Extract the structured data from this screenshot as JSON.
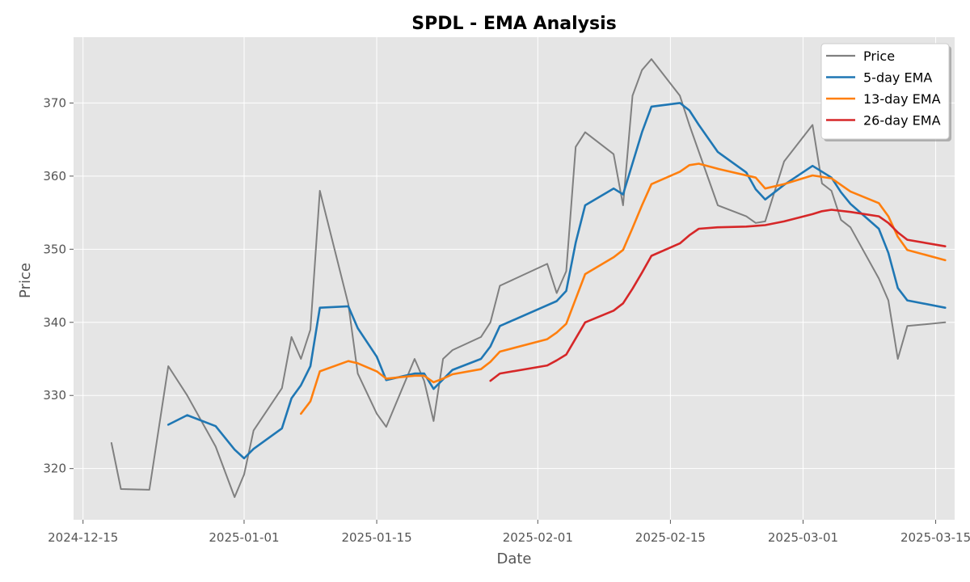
{
  "chart_data": {
    "type": "line",
    "title": "SPDL - EMA Analysis",
    "xlabel": "Date",
    "ylabel": "Price",
    "xlim": [
      "2024-12-14",
      "2025-03-17"
    ],
    "ylim": [
      313,
      379
    ],
    "x_ticks": [
      "2024-12-15",
      "2025-01-01",
      "2025-01-15",
      "2025-02-01",
      "2025-02-15",
      "2025-03-01",
      "2025-03-15"
    ],
    "y_ticks": [
      320,
      330,
      340,
      350,
      360,
      370
    ],
    "grid": true,
    "legend_position": "top-right",
    "series": [
      {
        "name": "Price",
        "color": "#808080",
        "points": [
          [
            "2024-12-18",
            323.5
          ],
          [
            "2024-12-19",
            317.2
          ],
          [
            "2024-12-22",
            317.1
          ],
          [
            "2024-12-24",
            334.0
          ],
          [
            "2024-12-26",
            330.0
          ],
          [
            "2024-12-29",
            323.0
          ],
          [
            "2024-12-31",
            316.1
          ],
          [
            "2025-01-01",
            319.2
          ],
          [
            "2025-01-02",
            325.2
          ],
          [
            "2025-01-05",
            331.0
          ],
          [
            "2025-01-06",
            338.0
          ],
          [
            "2025-01-07",
            335.0
          ],
          [
            "2025-01-08",
            339.0
          ],
          [
            "2025-01-09",
            358.0
          ],
          [
            "2025-01-12",
            342.5
          ],
          [
            "2025-01-13",
            333.0
          ],
          [
            "2025-01-15",
            327.5
          ],
          [
            "2025-01-16",
            325.7
          ],
          [
            "2025-01-19",
            335.0
          ],
          [
            "2025-01-20",
            332.0
          ],
          [
            "2025-01-21",
            326.5
          ],
          [
            "2025-01-22",
            335.0
          ],
          [
            "2025-01-23",
            336.2
          ],
          [
            "2025-01-26",
            338.0
          ],
          [
            "2025-01-27",
            340.0
          ],
          [
            "2025-01-28",
            345.0
          ],
          [
            "2025-02-02",
            348.0
          ],
          [
            "2025-02-03",
            344.0
          ],
          [
            "2025-02-04",
            347.0
          ],
          [
            "2025-02-05",
            364.0
          ],
          [
            "2025-02-06",
            366.0
          ],
          [
            "2025-02-09",
            363.0
          ],
          [
            "2025-02-10",
            356.0
          ],
          [
            "2025-02-11",
            371.0
          ],
          [
            "2025-02-12",
            374.5
          ],
          [
            "2025-02-13",
            376.0
          ],
          [
            "2025-02-16",
            371.0
          ],
          [
            "2025-02-17",
            367.0
          ],
          [
            "2025-02-20",
            356.0
          ],
          [
            "2025-02-23",
            354.5
          ],
          [
            "2025-02-24",
            353.6
          ],
          [
            "2025-02-25",
            353.8
          ],
          [
            "2025-02-27",
            362.0
          ],
          [
            "2025-03-02",
            367.0
          ],
          [
            "2025-03-03",
            359.0
          ],
          [
            "2025-03-04",
            358.0
          ],
          [
            "2025-03-05",
            354.0
          ],
          [
            "2025-03-06",
            353.0
          ],
          [
            "2025-03-09",
            346.0
          ],
          [
            "2025-03-10",
            343.0
          ],
          [
            "2025-03-11",
            335.0
          ],
          [
            "2025-03-12",
            339.5
          ],
          [
            "2025-03-16",
            340.0
          ]
        ]
      },
      {
        "name": "5-day EMA",
        "color": "#1f77b4",
        "points": [
          [
            "2024-12-24",
            326.0
          ],
          [
            "2024-12-26",
            327.3
          ],
          [
            "2024-12-29",
            325.8
          ],
          [
            "2024-12-31",
            322.6
          ],
          [
            "2025-01-01",
            321.4
          ],
          [
            "2025-01-02",
            322.7
          ],
          [
            "2025-01-05",
            325.5
          ],
          [
            "2025-01-06",
            329.6
          ],
          [
            "2025-01-07",
            331.4
          ],
          [
            "2025-01-08",
            334.0
          ],
          [
            "2025-01-09",
            342.0
          ],
          [
            "2025-01-12",
            342.2
          ],
          [
            "2025-01-13",
            339.2
          ],
          [
            "2025-01-15",
            335.3
          ],
          [
            "2025-01-16",
            332.1
          ],
          [
            "2025-01-19",
            333.0
          ],
          [
            "2025-01-20",
            333.0
          ],
          [
            "2025-01-21",
            330.9
          ],
          [
            "2025-01-22",
            332.2
          ],
          [
            "2025-01-23",
            333.5
          ],
          [
            "2025-01-26",
            335.0
          ],
          [
            "2025-01-27",
            336.7
          ],
          [
            "2025-01-28",
            339.5
          ],
          [
            "2025-02-03",
            342.9
          ],
          [
            "2025-02-04",
            344.3
          ],
          [
            "2025-02-05",
            350.9
          ],
          [
            "2025-02-06",
            356.0
          ],
          [
            "2025-02-09",
            358.3
          ],
          [
            "2025-02-10",
            357.5
          ],
          [
            "2025-02-12",
            366.0
          ],
          [
            "2025-02-13",
            369.5
          ],
          [
            "2025-02-16",
            370.0
          ],
          [
            "2025-02-17",
            369.0
          ],
          [
            "2025-02-18",
            367.0
          ],
          [
            "2025-02-20",
            363.3
          ],
          [
            "2025-02-23",
            360.5
          ],
          [
            "2025-02-24",
            358.2
          ],
          [
            "2025-02-25",
            356.8
          ],
          [
            "2025-02-27",
            358.8
          ],
          [
            "2025-03-02",
            361.4
          ],
          [
            "2025-03-04",
            359.8
          ],
          [
            "2025-03-05",
            357.8
          ],
          [
            "2025-03-06",
            356.2
          ],
          [
            "2025-03-09",
            352.8
          ],
          [
            "2025-03-10",
            349.5
          ],
          [
            "2025-03-11",
            344.7
          ],
          [
            "2025-03-12",
            343.0
          ],
          [
            "2025-03-16",
            342.0
          ]
        ]
      },
      {
        "name": "13-day EMA",
        "color": "#ff7f0e",
        "points": [
          [
            "2025-01-07",
            327.5
          ],
          [
            "2025-01-08",
            329.2
          ],
          [
            "2025-01-09",
            333.3
          ],
          [
            "2025-01-12",
            334.7
          ],
          [
            "2025-01-13",
            334.4
          ],
          [
            "2025-01-15",
            333.3
          ],
          [
            "2025-01-16",
            332.3
          ],
          [
            "2025-01-19",
            332.7
          ],
          [
            "2025-01-20",
            332.7
          ],
          [
            "2025-01-21",
            331.8
          ],
          [
            "2025-01-22",
            332.3
          ],
          [
            "2025-01-23",
            332.9
          ],
          [
            "2025-01-26",
            333.6
          ],
          [
            "2025-01-27",
            334.6
          ],
          [
            "2025-01-28",
            336.0
          ],
          [
            "2025-02-02",
            337.7
          ],
          [
            "2025-02-03",
            338.6
          ],
          [
            "2025-02-04",
            339.8
          ],
          [
            "2025-02-05",
            343.2
          ],
          [
            "2025-02-06",
            346.6
          ],
          [
            "2025-02-09",
            348.9
          ],
          [
            "2025-02-10",
            349.9
          ],
          [
            "2025-02-11",
            352.9
          ],
          [
            "2025-02-12",
            356.0
          ],
          [
            "2025-02-13",
            358.9
          ],
          [
            "2025-02-16",
            360.6
          ],
          [
            "2025-02-17",
            361.5
          ],
          [
            "2025-02-18",
            361.7
          ],
          [
            "2025-02-20",
            361.0
          ],
          [
            "2025-02-24",
            359.8
          ],
          [
            "2025-02-25",
            358.3
          ],
          [
            "2025-02-27",
            358.9
          ],
          [
            "2025-03-02",
            360.1
          ],
          [
            "2025-03-04",
            359.7
          ],
          [
            "2025-03-06",
            357.9
          ],
          [
            "2025-03-09",
            356.3
          ],
          [
            "2025-03-10",
            354.5
          ],
          [
            "2025-03-11",
            351.7
          ],
          [
            "2025-03-12",
            349.9
          ],
          [
            "2025-03-16",
            348.5
          ]
        ]
      },
      {
        "name": "26-day EMA",
        "color": "#d62728",
        "points": [
          [
            "2025-01-27",
            332.0
          ],
          [
            "2025-01-28",
            333.0
          ],
          [
            "2025-02-02",
            334.1
          ],
          [
            "2025-02-03",
            334.8
          ],
          [
            "2025-02-04",
            335.6
          ],
          [
            "2025-02-05",
            337.8
          ],
          [
            "2025-02-06",
            340.0
          ],
          [
            "2025-02-09",
            341.6
          ],
          [
            "2025-02-10",
            342.6
          ],
          [
            "2025-02-11",
            344.6
          ],
          [
            "2025-02-12",
            346.8
          ],
          [
            "2025-02-13",
            349.1
          ],
          [
            "2025-02-16",
            350.8
          ],
          [
            "2025-02-17",
            351.9
          ],
          [
            "2025-02-18",
            352.8
          ],
          [
            "2025-02-20",
            353.0
          ],
          [
            "2025-02-23",
            353.1
          ],
          [
            "2025-02-24",
            353.2
          ],
          [
            "2025-02-25",
            353.3
          ],
          [
            "2025-02-27",
            353.8
          ],
          [
            "2025-03-02",
            354.8
          ],
          [
            "2025-03-03",
            355.2
          ],
          [
            "2025-03-04",
            355.4
          ],
          [
            "2025-03-06",
            355.1
          ],
          [
            "2025-03-09",
            354.5
          ],
          [
            "2025-03-10",
            353.6
          ],
          [
            "2025-03-11",
            352.3
          ],
          [
            "2025-03-12",
            351.3
          ],
          [
            "2025-03-16",
            350.4
          ]
        ]
      }
    ]
  }
}
